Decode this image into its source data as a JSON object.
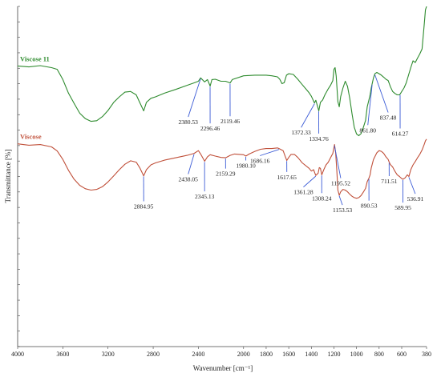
{
  "chart_data": {
    "type": "line",
    "xlabel": "Wavenumber [cm⁻¹]",
    "ylabel": "Transmittance [%]",
    "xlim": [
      4000,
      380
    ],
    "x_reversed": true,
    "ylim": [
      0,
      100
    ],
    "xticks": [
      "4000",
      "3600",
      "3200",
      "2800",
      "2400",
      "2000",
      "1800",
      "1600",
      "1400",
      "1200",
      "1000",
      "800",
      "600",
      "380"
    ],
    "grid": false,
    "series": [
      {
        "name": "Viscose 11",
        "color": "#2e8b2e",
        "points": [
          [
            4000,
            82.5
          ],
          [
            3900,
            82.2
          ],
          [
            3800,
            82.6
          ],
          [
            3700,
            82.0
          ],
          [
            3650,
            81.5
          ],
          [
            3600,
            78.5
          ],
          [
            3550,
            74.5
          ],
          [
            3500,
            71.5
          ],
          [
            3450,
            68.6
          ],
          [
            3400,
            67.0
          ],
          [
            3350,
            66.2
          ],
          [
            3300,
            66.4
          ],
          [
            3250,
            67.6
          ],
          [
            3200,
            69.4
          ],
          [
            3150,
            71.8
          ],
          [
            3100,
            73.4
          ],
          [
            3050,
            74.8
          ],
          [
            3000,
            75.0
          ],
          [
            2950,
            74.0
          ],
          [
            2920,
            71.8
          ],
          [
            2884,
            69.3
          ],
          [
            2860,
            71.8
          ],
          [
            2820,
            73.0
          ],
          [
            2780,
            73.4
          ],
          [
            2700,
            74.5
          ],
          [
            2600,
            75.6
          ],
          [
            2500,
            76.8
          ],
          [
            2440,
            77.5
          ],
          [
            2400,
            78.0
          ],
          [
            2380,
            79.0
          ],
          [
            2345,
            77.8
          ],
          [
            2320,
            78.5
          ],
          [
            2296,
            76.6
          ],
          [
            2280,
            78.5
          ],
          [
            2250,
            78.6
          ],
          [
            2200,
            78.0
          ],
          [
            2159,
            78.0
          ],
          [
            2119,
            77.5
          ],
          [
            2100,
            78.5
          ],
          [
            2000,
            79.6
          ],
          [
            1900,
            79.8
          ],
          [
            1800,
            79.8
          ],
          [
            1750,
            79.6
          ],
          [
            1700,
            79.3
          ],
          [
            1680,
            78.6
          ],
          [
            1660,
            77.3
          ],
          [
            1640,
            77.6
          ],
          [
            1620,
            79.8
          ],
          [
            1600,
            80.2
          ],
          [
            1560,
            80.0
          ],
          [
            1520,
            78.6
          ],
          [
            1480,
            77.0
          ],
          [
            1450,
            75.8
          ],
          [
            1420,
            74.6
          ],
          [
            1400,
            73.6
          ],
          [
            1372,
            71.6
          ],
          [
            1360,
            72.4
          ],
          [
            1334,
            69.3
          ],
          [
            1320,
            71.8
          ],
          [
            1300,
            72.5
          ],
          [
            1280,
            74.0
          ],
          [
            1250,
            75.8
          ],
          [
            1230,
            76.8
          ],
          [
            1210,
            78.2
          ],
          [
            1200,
            81.5
          ],
          [
            1190,
            82.0
          ],
          [
            1180,
            79.5
          ],
          [
            1165,
            72.0
          ],
          [
            1153,
            70.5
          ],
          [
            1140,
            73.5
          ],
          [
            1120,
            76.0
          ],
          [
            1100,
            78.0
          ],
          [
            1080,
            76.5
          ],
          [
            1060,
            73.0
          ],
          [
            1040,
            68.5
          ],
          [
            1020,
            64.5
          ],
          [
            1000,
            62.5
          ],
          [
            980,
            62.0
          ],
          [
            960,
            62.6
          ],
          [
            940,
            64.4
          ],
          [
            920,
            66.5
          ],
          [
            905,
            70.5
          ],
          [
            890,
            72.5
          ],
          [
            880,
            74.0
          ],
          [
            870,
            76.0
          ],
          [
            862,
            77.2
          ],
          [
            850,
            79.0
          ],
          [
            837,
            80.2
          ],
          [
            820,
            80.6
          ],
          [
            800,
            80.2
          ],
          [
            780,
            79.8
          ],
          [
            760,
            79.2
          ],
          [
            740,
            78.6
          ],
          [
            720,
            78.2
          ],
          [
            700,
            76.4
          ],
          [
            680,
            75.0
          ],
          [
            660,
            74.4
          ],
          [
            640,
            74.0
          ],
          [
            620,
            74.0
          ],
          [
            614,
            74.2
          ],
          [
            600,
            75.0
          ],
          [
            580,
            76.0
          ],
          [
            560,
            77.5
          ],
          [
            540,
            79.8
          ],
          [
            520,
            82.0
          ],
          [
            500,
            84.0
          ],
          [
            480,
            83.5
          ],
          [
            460,
            84.8
          ],
          [
            440,
            86.0
          ],
          [
            420,
            87.5
          ],
          [
            400,
            95.0
          ],
          [
            390,
            99.0
          ],
          [
            380,
            100.0
          ]
        ]
      },
      {
        "name": "Viscose",
        "color": "#c0503a",
        "points": [
          [
            4000,
            59.6
          ],
          [
            3900,
            59.2
          ],
          [
            3800,
            59.4
          ],
          [
            3700,
            58.7
          ],
          [
            3650,
            57.5
          ],
          [
            3600,
            55.0
          ],
          [
            3550,
            51.8
          ],
          [
            3500,
            49.2
          ],
          [
            3450,
            47.4
          ],
          [
            3400,
            46.4
          ],
          [
            3350,
            46.0
          ],
          [
            3300,
            46.2
          ],
          [
            3250,
            47.0
          ],
          [
            3200,
            48.4
          ],
          [
            3150,
            50.2
          ],
          [
            3100,
            52.0
          ],
          [
            3050,
            53.6
          ],
          [
            3000,
            54.6
          ],
          [
            2950,
            54.2
          ],
          [
            2920,
            52.6
          ],
          [
            2884,
            50.2
          ],
          [
            2860,
            52.0
          ],
          [
            2820,
            53.4
          ],
          [
            2780,
            54.0
          ],
          [
            2700,
            54.8
          ],
          [
            2600,
            55.5
          ],
          [
            2500,
            56.2
          ],
          [
            2438,
            56.8
          ],
          [
            2400,
            57.6
          ],
          [
            2380,
            56.6
          ],
          [
            2345,
            54.5
          ],
          [
            2320,
            55.8
          ],
          [
            2296,
            56.4
          ],
          [
            2250,
            56.0
          ],
          [
            2200,
            55.6
          ],
          [
            2159,
            55.5
          ],
          [
            2119,
            56.2
          ],
          [
            2080,
            56.6
          ],
          [
            2000,
            56.4
          ],
          [
            1980,
            56.0
          ],
          [
            1950,
            56.6
          ],
          [
            1900,
            57.4
          ],
          [
            1850,
            58.0
          ],
          [
            1800,
            58.2
          ],
          [
            1750,
            58.2
          ],
          [
            1700,
            58.4
          ],
          [
            1686,
            58.2
          ],
          [
            1650,
            57.6
          ],
          [
            1630,
            55.8
          ],
          [
            1617,
            54.7
          ],
          [
            1600,
            55.6
          ],
          [
            1580,
            56.5
          ],
          [
            1550,
            56.5
          ],
          [
            1520,
            55.6
          ],
          [
            1480,
            54.0
          ],
          [
            1450,
            53.2
          ],
          [
            1420,
            52.4
          ],
          [
            1400,
            51.6
          ],
          [
            1380,
            52.0
          ],
          [
            1361,
            50.3
          ],
          [
            1340,
            51.0
          ],
          [
            1330,
            52.6
          ],
          [
            1320,
            52.4
          ],
          [
            1308,
            50.5
          ],
          [
            1290,
            52.0
          ],
          [
            1270,
            53.4
          ],
          [
            1250,
            54.2
          ],
          [
            1230,
            55.5
          ],
          [
            1210,
            56.8
          ],
          [
            1200,
            58.5
          ],
          [
            1195,
            59.4
          ],
          [
            1185,
            57.0
          ],
          [
            1175,
            52.0
          ],
          [
            1165,
            46.0
          ],
          [
            1153,
            44.5
          ],
          [
            1140,
            45.5
          ],
          [
            1120,
            46.2
          ],
          [
            1100,
            46.0
          ],
          [
            1080,
            45.5
          ],
          [
            1060,
            44.8
          ],
          [
            1040,
            44.2
          ],
          [
            1020,
            43.8
          ],
          [
            1000,
            43.6
          ],
          [
            980,
            43.8
          ],
          [
            960,
            44.4
          ],
          [
            940,
            45.4
          ],
          [
            920,
            46.5
          ],
          [
            905,
            48.5
          ],
          [
            890,
            49.5
          ],
          [
            880,
            50.5
          ],
          [
            870,
            52.5
          ],
          [
            850,
            55.0
          ],
          [
            820,
            57.0
          ],
          [
            800,
            57.6
          ],
          [
            780,
            57.4
          ],
          [
            760,
            56.8
          ],
          [
            740,
            55.8
          ],
          [
            720,
            55.0
          ],
          [
            711,
            54.2
          ],
          [
            700,
            53.5
          ],
          [
            680,
            52.8
          ],
          [
            660,
            51.5
          ],
          [
            640,
            50.5
          ],
          [
            620,
            50.0
          ],
          [
            600,
            49.4
          ],
          [
            589,
            49.2
          ],
          [
            570,
            49.6
          ],
          [
            550,
            50.5
          ],
          [
            536,
            50.0
          ],
          [
            520,
            52.0
          ],
          [
            500,
            53.4
          ],
          [
            480,
            54.4
          ],
          [
            460,
            55.5
          ],
          [
            440,
            56.5
          ],
          [
            420,
            57.8
          ],
          [
            400,
            59.5
          ],
          [
            390,
            60.5
          ],
          [
            380,
            61.0
          ]
        ]
      }
    ],
    "annotations": [
      {
        "label": "2380.53",
        "series": 0,
        "x": 2380.53,
        "label_x": 2490,
        "label_y": 65.4
      },
      {
        "label": "2296.46",
        "series": 0,
        "x": 2296.46,
        "label_x": 2296,
        "label_y": 63.5
      },
      {
        "label": "2119.46",
        "series": 0,
        "x": 2119.46,
        "label_x": 2119,
        "label_y": 65.6
      },
      {
        "label": "1372.33",
        "series": 0,
        "x": 1372.33,
        "label_x": 1490,
        "label_y": 62.3
      },
      {
        "label": "1334.76",
        "series": 0,
        "x": 1334.76,
        "label_x": 1334,
        "label_y": 60.5
      },
      {
        "label": "861.80",
        "series": 0,
        "x": 861.8,
        "label_x": 900,
        "label_y": 63.0
      },
      {
        "label": "837.48",
        "series": 0,
        "x": 837.48,
        "label_x": 720,
        "label_y": 66.7
      },
      {
        "label": "614.27",
        "series": 0,
        "x": 614.27,
        "label_x": 614,
        "label_y": 62.0
      },
      {
        "label": "2884.95",
        "series": 1,
        "x": 2884.95,
        "label_x": 2884,
        "label_y": 40.6
      },
      {
        "label": "2438.05",
        "series": 1,
        "x": 2438.05,
        "label_x": 2490,
        "label_y": 48.6
      },
      {
        "label": "2345.13",
        "series": 1,
        "x": 2345.13,
        "label_x": 2345,
        "label_y": 43.5
      },
      {
        "label": "2159.29",
        "series": 1,
        "x": 2159.29,
        "label_x": 2159,
        "label_y": 50.2
      },
      {
        "label": "1980.10",
        "series": 1,
        "x": 1980.1,
        "label_x": 1980,
        "label_y": 52.6
      },
      {
        "label": "1686.16",
        "series": 1,
        "x": 1686.16,
        "label_x": 1855,
        "label_y": 54.0
      },
      {
        "label": "1617.65",
        "series": 1,
        "x": 1617.65,
        "label_x": 1617,
        "label_y": 49.2
      },
      {
        "label": "1361.28",
        "series": 1,
        "x": 1361.28,
        "label_x": 1470,
        "label_y": 44.8
      },
      {
        "label": "1308.24",
        "series": 1,
        "x": 1308.24,
        "label_x": 1308,
        "label_y": 43.0
      },
      {
        "label": "1195.52",
        "series": 1,
        "x": 1195.52,
        "label_x": 1140,
        "label_y": 47.4
      },
      {
        "label": "1153.53",
        "series": 1,
        "x": 1153.53,
        "label_x": 1125,
        "label_y": 39.5
      },
      {
        "label": "890.53",
        "series": 1,
        "x": 890.53,
        "label_x": 890,
        "label_y": 40.8
      },
      {
        "label": "711.51",
        "series": 1,
        "x": 711.51,
        "label_x": 711,
        "label_y": 48.0
      },
      {
        "label": "589.95",
        "series": 1,
        "x": 589.95,
        "label_x": 589,
        "label_y": 40.2
      },
      {
        "label": "536.91",
        "series": 1,
        "x": 536.91,
        "label_x": 480,
        "label_y": 42.8
      }
    ]
  }
}
